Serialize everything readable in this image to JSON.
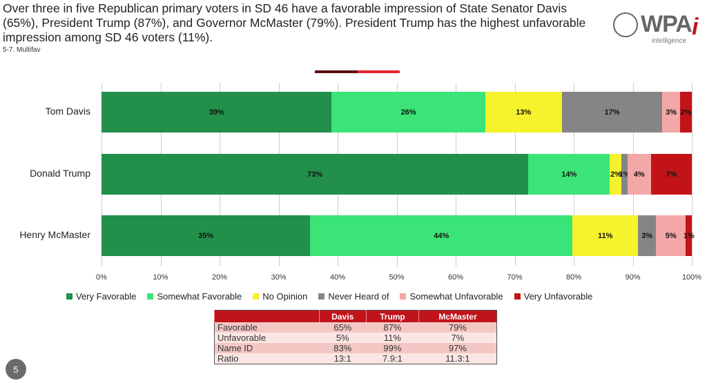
{
  "header": {
    "title": "Over three in five Republican primary voters in SD 46 have a favorable impression of State Senator Davis (65%), President Trump (87%), and Governor McMaster (79%). President Trump has the highest unfavorable impression among SD 46 voters (11%).",
    "subtitle": "5-7. Multifav",
    "logo_text": "WPA",
    "logo_i": "i",
    "logo_sub": "intelligence"
  },
  "chart_data": {
    "type": "bar",
    "orientation": "horizontal-stacked-100",
    "categories": [
      "Tom Davis",
      "Donald Trump",
      "Henry McMaster"
    ],
    "series": [
      {
        "name": "Very Favorable",
        "color": "#22904a",
        "values": [
          39,
          73,
          35
        ]
      },
      {
        "name": "Somewhat Favorable",
        "color": "#3be477",
        "values": [
          26,
          14,
          44
        ]
      },
      {
        "name": "No Opinion",
        "color": "#f6f32c",
        "values": [
          13,
          2,
          11
        ]
      },
      {
        "name": "Never Heard of",
        "color": "#858585",
        "values": [
          17,
          1,
          3
        ]
      },
      {
        "name": "Somewhat Unfavorable",
        "color": "#f3a7a7",
        "values": [
          3,
          4,
          5
        ]
      },
      {
        "name": "Very Unfavorable",
        "color": "#c21417",
        "values": [
          2,
          7,
          1
        ]
      }
    ],
    "xticks": [
      "0%",
      "10%",
      "20%",
      "30%",
      "40%",
      "50%",
      "60%",
      "70%",
      "80%",
      "90%",
      "100%"
    ],
    "xlim": [
      0,
      100
    ],
    "legend": "bottom",
    "grid": true
  },
  "table": {
    "headers": [
      "",
      "Davis",
      "Trump",
      "McMaster"
    ],
    "rows": [
      [
        "Favorable",
        "65%",
        "87%",
        "79%"
      ],
      [
        "Unfavorable",
        "5%",
        "11%",
        "7%"
      ],
      [
        "Name ID",
        "83%",
        "99%",
        "97%"
      ],
      [
        "Ratio",
        "13:1",
        "7.9:1",
        "11.3:1"
      ]
    ]
  },
  "page_number": "5"
}
